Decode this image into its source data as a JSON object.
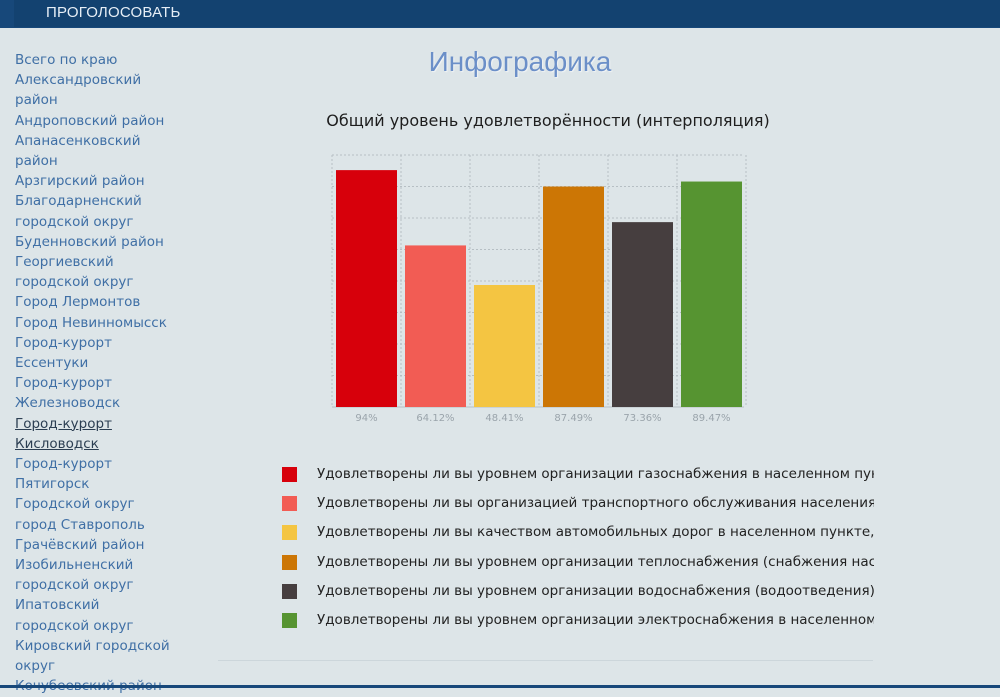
{
  "header": {
    "vote_label": "ПРОГОЛОСОВАТЬ"
  },
  "sidebar": {
    "items": [
      "Всего по краю",
      "Александровский",
      "район",
      "Андроповский район",
      "Апанасенковский",
      "район",
      "Арзгирский район",
      "Благодарненский",
      "городской округ",
      "Буденновский район",
      "Георгиевский",
      "городской округ",
      "Город Лермонтов",
      "Город Невинномысск",
      "Город-курорт",
      "Ессентуки",
      "Город-курорт",
      "Железноводск",
      "Город-курорт",
      "Кисловодск",
      "Город-курорт",
      "Пятигорск",
      "Городской округ",
      "город Ставрополь",
      "Грачёвский район",
      "Изобильненский",
      "городской округ",
      "Ипатовский",
      "городской округ",
      "Кировский городской",
      "округ",
      "Кочубеевский район"
    ]
  },
  "page": {
    "title": "Инфографика"
  },
  "chart_data": {
    "type": "bar",
    "title": "Общий уровень удовлетворённости (интерполяция)",
    "categories": [
      "94%",
      "64.12%",
      "48.41%",
      "87.49%",
      "73.36%",
      "89.47%"
    ],
    "values": [
      94,
      64.12,
      48.41,
      87.49,
      73.36,
      89.47
    ],
    "colors": [
      "#d7000b",
      "#f25c54",
      "#f4c542",
      "#cc7605",
      "#463e3f",
      "#569431"
    ],
    "ylim": [
      0,
      100
    ],
    "grid": true,
    "legend": [
      "Удовлетворены ли вы уровнем организации газоснабжения в населенном пункте, в",
      "Удовлетворены ли вы организацией транспортного обслуживания населения в нас",
      "Удовлетворены ли вы качеством автомобильных дорог в населенном пункте, в кото",
      "Удовлетворены ли вы уровнем организации теплоснабжения (снабжения населени",
      "Удовлетворены ли вы уровнем организации водоснабжения (водоотведения) в нас",
      "Удовлетворены ли вы уровнем организации электроснабжения в населенном пунк"
    ],
    "legend_position": "bottom"
  }
}
